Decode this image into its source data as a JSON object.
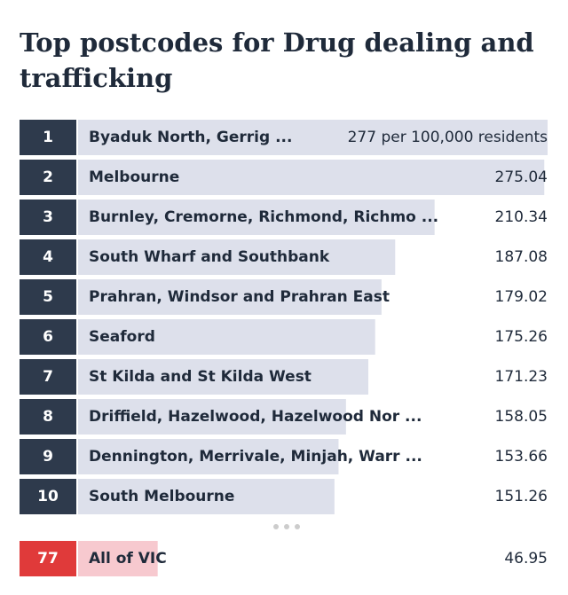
{
  "chart_data": {
    "type": "bar",
    "orientation": "horizontal",
    "title_lines": [
      "Top postcodes for Drug dealing and",
      "trafficking"
    ],
    "ranks": [
      1,
      2,
      3,
      4,
      5,
      6,
      7,
      8,
      9,
      10
    ],
    "categories": [
      "Byaduk North, Gerrig ...",
      "Melbourne",
      "Burnley, Cremorne, Richmond, Richmo ...",
      "South Wharf and Southbank",
      "Prahran, Windsor and Prahran East",
      "Seaford",
      "St Kilda and St Kilda West",
      "Driffield, Hazelwood, Hazelwood Nor ...",
      "Dennington, Merrivale, Minjah, Warr ...",
      "South Melbourne"
    ],
    "values": [
      277,
      275.04,
      210.34,
      187.08,
      179.02,
      175.26,
      171.23,
      158.05,
      153.66,
      151.26
    ],
    "value_labels": [
      "277 per 100,000 residents",
      "275.04",
      "210.34",
      "187.08",
      "179.02",
      "175.26",
      "171.23",
      "158.05",
      "153.66",
      "151.26"
    ],
    "color": "#dde0eb",
    "rank_color": "#2e3a4c",
    "summary": {
      "rank": 77,
      "category": "All of VIC",
      "value": 46.95,
      "color": "#f7c9cf",
      "rank_color": "#e03a3a"
    }
  }
}
